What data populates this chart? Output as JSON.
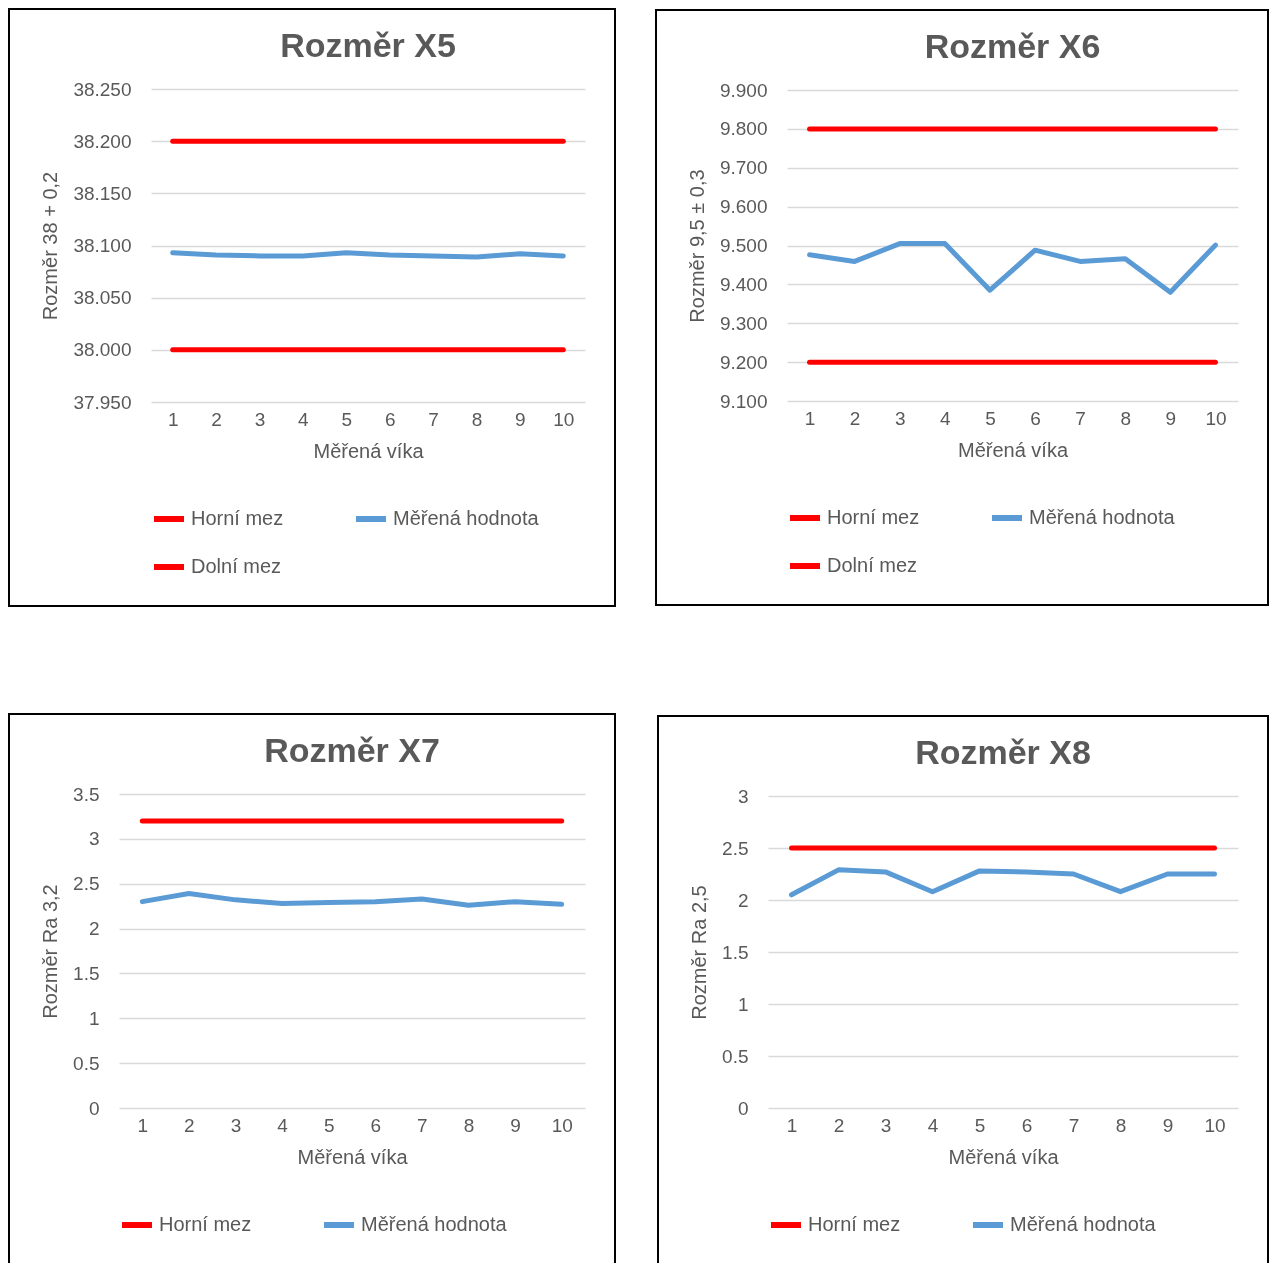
{
  "chart_data": [
    {
      "type": "line",
      "title": "Rozměr X5",
      "xlabel": "Měřená víka",
      "ylabel": "Rozměr 38 + 0,2",
      "categories": [
        "1",
        "2",
        "3",
        "4",
        "5",
        "6",
        "7",
        "8",
        "9",
        "10"
      ],
      "series": [
        {
          "name": "Horní mez",
          "color": "#ff0000",
          "values": [
            38.2,
            38.2,
            38.2,
            38.2,
            38.2,
            38.2,
            38.2,
            38.2,
            38.2,
            38.2
          ]
        },
        {
          "name": "Měřená hodnota",
          "color": "#5b9bd5",
          "values": [
            38.093,
            38.091,
            38.09,
            38.09,
            38.093,
            38.091,
            38.09,
            38.089,
            38.092,
            38.09
          ]
        },
        {
          "name": "Dolní mez",
          "color": "#ff0000",
          "values": [
            38.0,
            38.0,
            38.0,
            38.0,
            38.0,
            38.0,
            38.0,
            38.0,
            38.0,
            38.0
          ]
        }
      ],
      "ylim": [
        37.95,
        38.25
      ],
      "yticks": [
        {
          "value": 37.95,
          "label": "37.950"
        },
        {
          "value": 38,
          "label": "38.000"
        },
        {
          "value": 38.05,
          "label": "38.050"
        },
        {
          "value": 38.1,
          "label": "38.100"
        },
        {
          "value": 38.15,
          "label": "38.150"
        },
        {
          "value": 38.2,
          "label": "38.200"
        },
        {
          "value": 38.25,
          "label": "38.250"
        }
      ],
      "grid": "y",
      "legend": "bottom"
    },
    {
      "type": "line",
      "title": "Rozměr X6",
      "xlabel": "Měřená víka",
      "ylabel": "Rozměr 9,5 ± 0,3",
      "categories": [
        "1",
        "2",
        "3",
        "4",
        "5",
        "6",
        "7",
        "8",
        "9",
        "10"
      ],
      "series": [
        {
          "name": "Horní mez",
          "color": "#ff0000",
          "values": [
            9.8,
            9.8,
            9.8,
            9.8,
            9.8,
            9.8,
            9.8,
            9.8,
            9.8,
            9.8
          ]
        },
        {
          "name": "Měřená hodnota",
          "color": "#5b9bd5",
          "values": [
            9.476,
            9.459,
            9.505,
            9.505,
            9.385,
            9.488,
            9.459,
            9.466,
            9.38,
            9.501
          ]
        },
        {
          "name": "Dolní mez",
          "color": "#ff0000",
          "values": [
            9.2,
            9.2,
            9.2,
            9.2,
            9.2,
            9.2,
            9.2,
            9.2,
            9.2,
            9.2
          ]
        }
      ],
      "ylim": [
        9.1,
        9.9
      ],
      "yticks": [
        {
          "value": 9.1,
          "label": "9.100"
        },
        {
          "value": 9.2,
          "label": "9.200"
        },
        {
          "value": 9.3,
          "label": "9.300"
        },
        {
          "value": 9.4,
          "label": "9.400"
        },
        {
          "value": 9.5,
          "label": "9.500"
        },
        {
          "value": 9.6,
          "label": "9.600"
        },
        {
          "value": 9.7,
          "label": "9.700"
        },
        {
          "value": 9.8,
          "label": "9.800"
        },
        {
          "value": 9.9,
          "label": "9.900"
        }
      ],
      "grid": "y",
      "legend": "bottom"
    },
    {
      "type": "line",
      "title": "Rozměr X7",
      "xlabel": "Měřená víka",
      "ylabel": "Rozměr Ra 3,2",
      "categories": [
        "1",
        "2",
        "3",
        "4",
        "5",
        "6",
        "7",
        "8",
        "9",
        "10"
      ],
      "series": [
        {
          "name": "Horní mez",
          "color": "#ff0000",
          "values": [
            3.2,
            3.2,
            3.2,
            3.2,
            3.2,
            3.2,
            3.2,
            3.2,
            3.2,
            3.2
          ]
        },
        {
          "name": "Měřená hodnota",
          "color": "#5b9bd5",
          "values": [
            2.3,
            2.39,
            2.32,
            2.28,
            2.29,
            2.3,
            2.33,
            2.26,
            2.3,
            2.27
          ]
        }
      ],
      "ylim": [
        0,
        3.5
      ],
      "yticks": [
        0,
        0.5,
        1,
        1.5,
        2,
        2.5,
        3,
        3.5
      ],
      "grid": "y",
      "legend": "bottom"
    },
    {
      "type": "line",
      "title": "Rozměr X8",
      "xlabel": "Měřená víka",
      "ylabel": "Rozměr Ra 2,5",
      "categories": [
        "1",
        "2",
        "3",
        "4",
        "5",
        "6",
        "7",
        "8",
        "9",
        "10"
      ],
      "series": [
        {
          "name": "Horní mez",
          "color": "#ff0000",
          "values": [
            2.5,
            2.5,
            2.5,
            2.5,
            2.5,
            2.5,
            2.5,
            2.5,
            2.5,
            2.5
          ]
        },
        {
          "name": "Měřená hodnota",
          "color": "#5b9bd5",
          "values": [
            2.05,
            2.29,
            2.27,
            2.08,
            2.28,
            2.27,
            2.25,
            2.08,
            2.25,
            2.25
          ]
        }
      ],
      "ylim": [
        0,
        3
      ],
      "yticks": [
        0,
        0.5,
        1,
        1.5,
        2,
        2.5,
        3
      ],
      "grid": "y",
      "legend": "bottom"
    }
  ]
}
